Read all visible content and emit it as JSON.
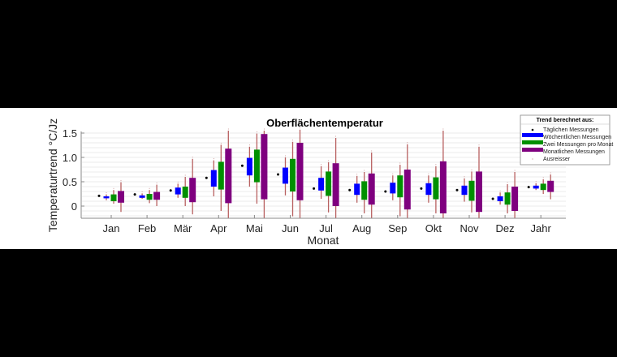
{
  "chart_data": {
    "type": "boxplot",
    "title": "Oberflächentemperatur",
    "xlabel": "Monat",
    "ylabel": "Temperaturtrend °C/Jz",
    "ylim": [
      -0.25,
      1.6
    ],
    "yticks": [
      0,
      0.5,
      1.0,
      1.5
    ],
    "ytick_labels": [
      "0",
      "0.5",
      "1.0",
      "1.5"
    ],
    "grid": "horizontal minor",
    "categories": [
      "Jan",
      "Feb",
      "Mär",
      "Apr",
      "Mai",
      "Jun",
      "Jul",
      "Aug",
      "Sep",
      "Okt",
      "Nov",
      "Dez",
      "Jahr"
    ],
    "legend": {
      "title": "Trend berechnet aus:",
      "placement": "top-right",
      "entries": [
        "Täglichen Messungen",
        "Wöchentlichen Messungen",
        "Zwei Messungen pro Monat",
        "Monatlichen Messungen",
        "Ausreisser"
      ]
    },
    "colors": {
      "daily": "#000000",
      "weekly": "#0000ff",
      "biweekly": "#009000",
      "monthly": "#7f007f",
      "whisker": "#b86060",
      "outlier": "#c08080"
    },
    "daily": [
      0.21,
      0.24,
      0.32,
      0.58,
      0.83,
      0.65,
      0.36,
      0.33,
      0.3,
      0.36,
      0.33,
      0.15,
      0.39
    ],
    "series": [
      {
        "name": "Wöchentlichen Messungen",
        "boxes": [
          [
            0.12,
            0.16,
            0.2,
            0.24
          ],
          [
            0.15,
            0.17,
            0.22,
            0.26
          ],
          [
            0.17,
            0.24,
            0.38,
            0.46
          ],
          [
            0.2,
            0.4,
            0.74,
            0.94
          ],
          [
            0.4,
            0.63,
            0.99,
            1.22
          ],
          [
            0.22,
            0.46,
            0.79,
            1.0
          ],
          [
            0.15,
            0.32,
            0.58,
            0.82
          ],
          [
            0.07,
            0.23,
            0.46,
            0.62
          ],
          [
            0.12,
            0.26,
            0.48,
            0.63
          ],
          [
            0.07,
            0.23,
            0.47,
            0.63
          ],
          [
            0.09,
            0.23,
            0.42,
            0.57
          ],
          [
            0.03,
            0.1,
            0.2,
            0.28
          ],
          [
            0.33,
            0.36,
            0.42,
            0.47
          ]
        ]
      },
      {
        "name": "Zwei Messungen pro Monat",
        "boxes": [
          [
            0.05,
            0.1,
            0.24,
            0.33
          ],
          [
            0.06,
            0.13,
            0.25,
            0.33
          ],
          [
            0.0,
            0.17,
            0.4,
            0.6
          ],
          [
            -0.1,
            0.34,
            0.91,
            1.26
          ],
          [
            0.05,
            0.49,
            1.16,
            1.49
          ],
          [
            -0.21,
            0.3,
            0.97,
            1.32
          ],
          [
            -0.13,
            0.21,
            0.71,
            0.9
          ],
          [
            -0.15,
            0.13,
            0.51,
            0.7
          ],
          [
            -0.21,
            0.18,
            0.63,
            0.85
          ],
          [
            -0.15,
            0.14,
            0.59,
            0.82
          ],
          [
            -0.13,
            0.11,
            0.52,
            0.71
          ],
          [
            -0.15,
            0.03,
            0.28,
            0.45
          ],
          [
            0.25,
            0.33,
            0.46,
            0.55
          ]
        ]
      },
      {
        "name": "Monatlichen Messungen",
        "boxes": [
          [
            -0.12,
            0.07,
            0.31,
            0.49
          ],
          [
            0.0,
            0.13,
            0.29,
            0.44
          ],
          [
            -0.17,
            0.08,
            0.58,
            0.97
          ],
          [
            -0.25,
            0.06,
            1.18,
            1.55
          ],
          [
            -0.25,
            0.14,
            1.48,
            1.55
          ],
          [
            -0.25,
            0.12,
            1.3,
            1.57
          ],
          [
            -0.25,
            0.0,
            0.88,
            1.4
          ],
          [
            -0.25,
            0.03,
            0.67,
            1.1
          ],
          [
            -0.25,
            -0.07,
            0.75,
            1.27
          ],
          [
            -0.25,
            -0.15,
            0.92,
            1.55
          ],
          [
            -0.25,
            -0.12,
            0.71,
            1.22
          ],
          [
            -0.25,
            -0.1,
            0.4,
            0.7
          ],
          [
            0.14,
            0.29,
            0.52,
            0.65
          ]
        ]
      }
    ]
  }
}
